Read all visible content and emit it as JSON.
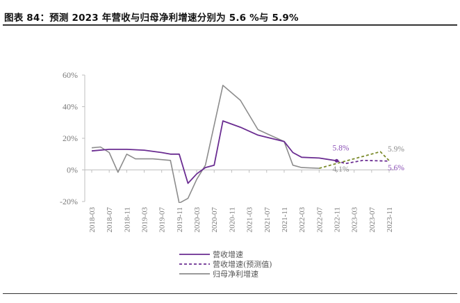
{
  "figure": {
    "title": "图表 84：预测 2023 年营收与归母净利增速分别为 5.6 %与 5.9%"
  },
  "colors": {
    "revenue": "#6a2c91",
    "forecast_revenue": "#6a2c91",
    "net_profit": "#8c8c8c",
    "forecast_net_profit": "#7a8a2a",
    "axis": "#bfbfbf",
    "tick_text": "#7a7a7a"
  },
  "chart_data": {
    "type": "line",
    "title": "",
    "xlabel": "",
    "ylabel": "",
    "ylim": [
      -20,
      60
    ],
    "yticks": [
      -20,
      0,
      20,
      40,
      60
    ],
    "ytick_labels": [
      "-20%",
      "0%",
      "20%",
      "40%",
      "60%"
    ],
    "grid": false,
    "legend_position": "bottom",
    "x": [
      "2018-03",
      "2018-05",
      "2018-07",
      "2018-09",
      "2018-11",
      "2019-01",
      "2019-03",
      "2019-05",
      "2019-07",
      "2019-09",
      "2019-11",
      "2020-01",
      "2020-03",
      "2020-05",
      "2020-07",
      "2020-09",
      "2020-11",
      "2021-01",
      "2021-03",
      "2021-05",
      "2021-07",
      "2021-09",
      "2021-11",
      "2022-01",
      "2022-03",
      "2022-05",
      "2022-07",
      "2022-09",
      "2022-11",
      "2023-01",
      "2023-03",
      "2023-05",
      "2023-07",
      "2023-09",
      "2023-11"
    ],
    "xtick_labels": [
      "2018-03",
      "2018-07",
      "2018-11",
      "2019-03",
      "2019-07",
      "2019-11",
      "2020-03",
      "2020-07",
      "2020-11",
      "2021-03",
      "2021-07",
      "2021-11",
      "2022-03",
      "2022-07",
      "2022-11",
      "2023-03",
      "2023-07",
      "2023-11"
    ],
    "series": [
      {
        "name": "营收增速",
        "style": "solid",
        "points": [
          [
            "2018-03",
            12
          ],
          [
            "2018-07",
            13
          ],
          [
            "2018-11",
            13
          ],
          [
            "2019-03",
            12.5
          ],
          [
            "2019-07",
            11
          ],
          [
            "2019-09",
            10
          ],
          [
            "2019-11",
            10
          ],
          [
            "2020-01",
            -8.5
          ],
          [
            "2020-03",
            -2.5
          ],
          [
            "2020-05",
            1.5
          ],
          [
            "2020-07",
            3
          ],
          [
            "2020-09",
            31
          ],
          [
            "2021-01",
            27
          ],
          [
            "2021-05",
            22
          ],
          [
            "2021-11",
            18
          ],
          [
            "2022-01",
            11
          ],
          [
            "2022-03",
            8
          ],
          [
            "2022-07",
            7.5
          ],
          [
            "2022-11",
            5.8
          ]
        ]
      },
      {
        "name": "营收增速(预测值)",
        "style": "dashed",
        "points": [
          [
            "2022-11",
            5.8
          ],
          [
            "2023-01",
            4
          ],
          [
            "2023-05",
            6
          ],
          [
            "2023-11",
            5.6
          ]
        ]
      },
      {
        "name": "归母净利增速",
        "style": "solid",
        "points": [
          [
            "2018-03",
            14
          ],
          [
            "2018-05",
            14.5
          ],
          [
            "2018-07",
            11
          ],
          [
            "2018-09",
            -1.5
          ],
          [
            "2018-11",
            10
          ],
          [
            "2019-01",
            7
          ],
          [
            "2019-05",
            7
          ],
          [
            "2019-09",
            6
          ],
          [
            "2019-11",
            -21
          ],
          [
            "2020-01",
            -18
          ],
          [
            "2020-03",
            -6
          ],
          [
            "2020-05",
            3
          ],
          [
            "2020-09",
            53.5
          ],
          [
            "2021-01",
            44
          ],
          [
            "2021-05",
            25.5
          ],
          [
            "2021-11",
            18
          ],
          [
            "2022-01",
            3
          ],
          [
            "2022-03",
            1.5
          ],
          [
            "2022-07",
            1
          ]
        ]
      },
      {
        "name": "",
        "style": "dashed",
        "points": [
          [
            "2022-07",
            1
          ],
          [
            "2022-11",
            4.1
          ],
          [
            "2023-09",
            11.5
          ],
          [
            "2023-11",
            5.9
          ]
        ]
      }
    ],
    "annotations": [
      {
        "text": "5.8%",
        "x": "2022-11",
        "y": 5.8,
        "color": "#8a4fb5"
      },
      {
        "text": "4.1%",
        "x": "2022-11",
        "y": 4.1,
        "color": "#8c8c8c"
      },
      {
        "text": "5.9%",
        "x": "2023-11",
        "y": 5.9,
        "color": "#8c8c8c"
      },
      {
        "text": "5.6%",
        "x": "2023-11",
        "y": 5.6,
        "color": "#8a4fb5"
      }
    ],
    "legend": [
      {
        "label": "营收增速",
        "style": "solid",
        "color_key": "revenue"
      },
      {
        "label": "营收增速(预测值)",
        "style": "dashed",
        "color_key": "forecast_revenue"
      },
      {
        "label": "归母净利增速",
        "style": "solid",
        "color_key": "net_profit"
      }
    ]
  }
}
